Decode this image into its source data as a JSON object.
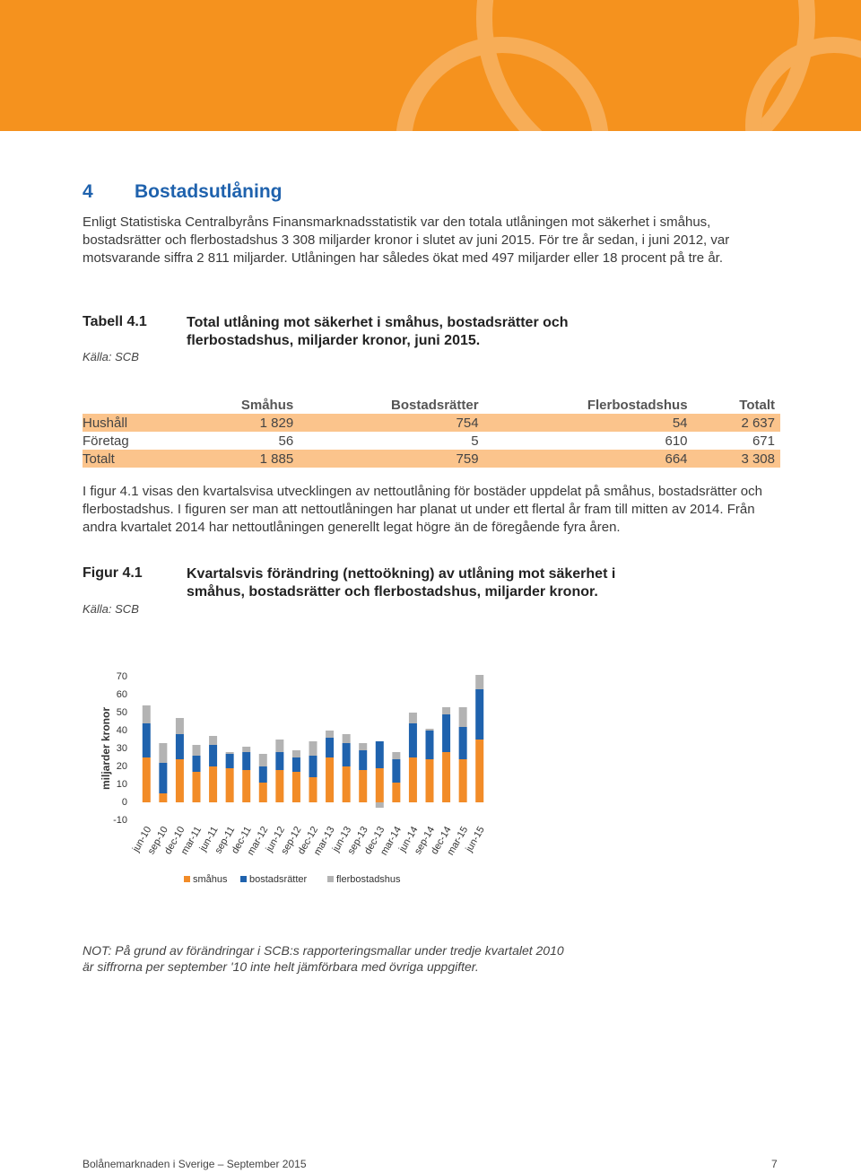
{
  "section": {
    "number": "4",
    "title": "Bostadsutlåning"
  },
  "paragraph1": "Enligt Statistiska Centralbyråns Finansmarknadsstatistik var den totala utlåningen mot säkerhet i småhus, bostadsrätter och flerbostadshus 3 308 miljarder kronor i slutet av juni 2015. För tre år sedan, i juni 2012, var motsvarande siffra 2 811 miljarder. Utlåningen har således ökat med 497 miljarder eller 18 procent på tre år.",
  "table_caption": {
    "label": "Tabell 4.1",
    "source": "Källa: SCB",
    "title": "Total utlåning mot säkerhet i småhus, bostadsrätter och flerbostadshus, miljarder kronor, juni 2015."
  },
  "table": {
    "columns": [
      "Småhus",
      "Bostadsrätter",
      "Flerbostadshus",
      "Totalt"
    ],
    "rows": [
      [
        "Hushåll",
        "1 829",
        "754",
        "54",
        "2 637"
      ],
      [
        "Företag",
        "56",
        "5",
        "610",
        "671"
      ],
      [
        "Totalt",
        "1 885",
        "759",
        "664",
        "3 308"
      ]
    ]
  },
  "paragraph2": "I figur 4.1 visas den kvartalsvisa utvecklingen av nettoutlåning för bostäder uppdelat på småhus, bostadsrätter och flerbostadshus. I figuren ser man att nettoutlåningen har planat ut under ett flertal år fram till mitten av 2014. Från andra kvartalet 2014 har nettoutlåningen generellt legat högre än de föregående fyra åren.",
  "figure_caption": {
    "label": "Figur 4.1",
    "source": "Källa: SCB",
    "title": "Kvartalsvis förändring (nettoökning) av utlåning mot säkerhet i småhus, bostadsrätter och flerbostadshus, miljarder kronor."
  },
  "chart_data": {
    "type": "stacked-bar",
    "y_label": "miljarder kronor",
    "categories": [
      "jun-10",
      "sep-10",
      "dec-10",
      "mar-11",
      "jun-11",
      "sep-11",
      "dec-11",
      "mar-12",
      "jun-12",
      "sep-12",
      "dec-12",
      "mar-13",
      "jun-13",
      "sep-13",
      "dec-13",
      "mar-14",
      "jun-14",
      "sep-14",
      "dec-14",
      "mar-15",
      "jun-15"
    ],
    "series": [
      {
        "name": "småhus",
        "color": "#f28c28",
        "values": [
          25,
          5,
          24,
          17,
          20,
          19,
          18,
          11,
          18,
          17,
          14,
          25,
          20,
          18,
          19,
          11,
          25,
          24,
          28,
          24,
          35
        ]
      },
      {
        "name": "bostadsrätter",
        "color": "#1f62ad",
        "values": [
          19,
          17,
          14,
          9,
          12,
          8,
          10,
          9,
          10,
          8,
          12,
          11,
          13,
          11,
          15,
          13,
          19,
          16,
          21,
          18,
          28
        ]
      },
      {
        "name": "flerbostadshus",
        "color": "#b3b3b3",
        "values": [
          10,
          11,
          9,
          6,
          5,
          1,
          3,
          7,
          7,
          4,
          8,
          4,
          5,
          4,
          -3,
          4,
          6,
          1,
          4,
          11,
          8
        ]
      }
    ],
    "ylim": [
      -10,
      70
    ],
    "yticks": [
      -10,
      0,
      10,
      20,
      30,
      40,
      50,
      60,
      70
    ]
  },
  "note": "NOT: På grund av förändringar i SCB:s rapporteringsmallar under tredje kvartalet 2010 är siffrorna per september '10 inte helt jämförbara med övriga uppgifter.",
  "footer": {
    "publication": "Bolånemarknaden i Sverige – September 2015",
    "page": "7"
  }
}
